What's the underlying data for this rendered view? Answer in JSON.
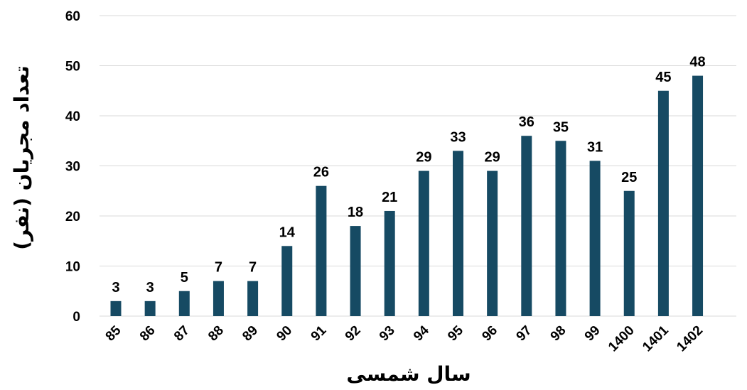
{
  "chart_data": {
    "type": "bar",
    "title": "",
    "xlabel": "سال شمسی",
    "ylabel": "تعداد مجریان (نفر)",
    "categories": [
      "85",
      "86",
      "87",
      "88",
      "89",
      "90",
      "91",
      "92",
      "93",
      "94",
      "95",
      "96",
      "97",
      "98",
      "99",
      "1400",
      "1401",
      "1402"
    ],
    "values": [
      3,
      3,
      5,
      7,
      7,
      14,
      26,
      18,
      21,
      29,
      33,
      29,
      36,
      35,
      31,
      25,
      45,
      48
    ],
    "ylim": [
      0,
      60
    ],
    "yticks": [
      0,
      10,
      20,
      30,
      40,
      50,
      60
    ],
    "grid": true,
    "data_labels": true,
    "bar_color": "#164a63",
    "gridline_color": "#d9d9d9"
  }
}
